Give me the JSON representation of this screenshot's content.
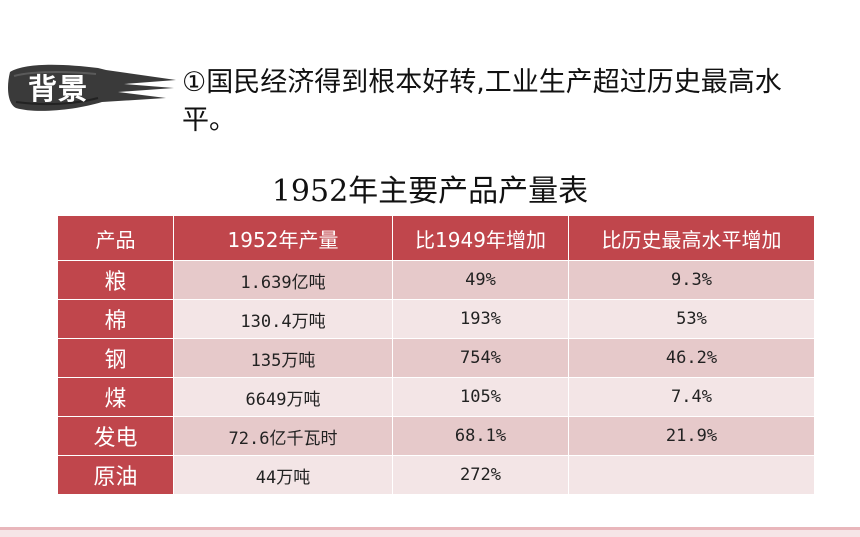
{
  "badge": {
    "label": "背景"
  },
  "point": {
    "text": "①国民经济得到根本好转,工业生产超过历史最高水平。"
  },
  "table": {
    "title": "1952年主要产品产量表",
    "headers": [
      "产品",
      "1952年产量",
      "比1949年增加",
      "比历史最高水平增加"
    ],
    "rows": [
      {
        "product": "粮",
        "output": "1.639亿吨",
        "vs1949": "49%",
        "vsPeak": "9.3%"
      },
      {
        "product": "棉",
        "output": "130.4万吨",
        "vs1949": "193%",
        "vsPeak": "53%"
      },
      {
        "product": "钢",
        "output": "135万吨",
        "vs1949": "754%",
        "vsPeak": "46.2%"
      },
      {
        "product": "煤",
        "output": "6649万吨",
        "vs1949": "105%",
        "vsPeak": "7.4%"
      },
      {
        "product": "发电",
        "output": "72.6亿千瓦时",
        "vs1949": "68.1%",
        "vsPeak": "21.9%"
      },
      {
        "product": "原油",
        "output": "44万吨",
        "vs1949": "272%",
        "vsPeak": ""
      }
    ]
  },
  "colors": {
    "header": "#c0464c",
    "row_dark": "#e6c9ca",
    "row_light": "#f3e5e6",
    "brush": "#3a3a3a"
  }
}
